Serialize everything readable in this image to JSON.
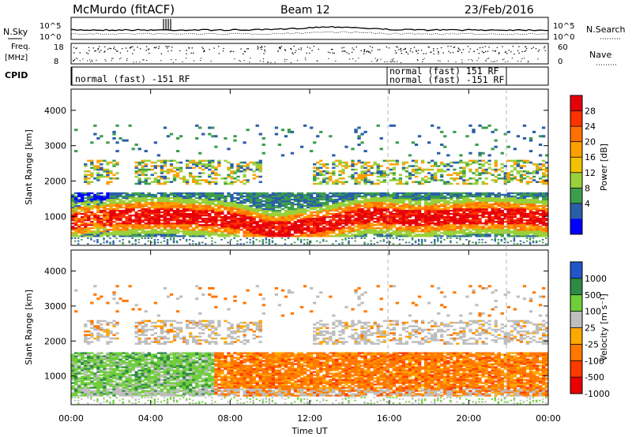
{
  "header": {
    "station": "McMurdo (fitACF)",
    "beam": "Beam 12",
    "date": "23/Feb/2016"
  },
  "top_panels": {
    "nsky_label": "N.Sky",
    "nsearch_label": "N.Search",
    "freq_label_1": "Freq.",
    "freq_label_2": "[MHz]",
    "nave_label": "Nave",
    "cpid_label": "CPID",
    "noise_ticks": [
      "10^5",
      "10^0"
    ],
    "freq_ticks": [
      "18",
      "8"
    ],
    "nave_ticks": [
      "60",
      "0"
    ],
    "cpid_segments": [
      {
        "label": "normal (fast) -151 RF"
      },
      {
        "label": "normal (fast) 151 RF"
      },
      {
        "label": "normal (fast) -151 RF"
      }
    ]
  },
  "chart_data": [
    {
      "type": "heatmap",
      "name": "power",
      "ylabel": "Slant Range [km]",
      "yticks": [
        1000,
        2000,
        3000,
        4000
      ],
      "ylim": [
        180,
        4600
      ],
      "colorbar": {
        "label": "Power [dB]",
        "ticks": [
          "28",
          "24",
          "20",
          "16",
          "12",
          "8",
          "4"
        ],
        "colors": [
          "#e6000a",
          "#ff3200",
          "#ff7000",
          "#ffa000",
          "#f2c200",
          "#9ad03a",
          "#3c9d4c",
          "#2a5fa8",
          "#0000ff"
        ]
      },
      "bands": [
        {
          "range": [
            420,
            1600
          ],
          "value": "high"
        },
        {
          "range": [
            1900,
            2500
          ],
          "value": "medium"
        },
        {
          "range": [
            2700,
            3600
          ],
          "value": "low"
        }
      ]
    },
    {
      "type": "heatmap",
      "name": "velocity",
      "ylabel": "Slant Range [km]",
      "xlabel": "Time UT",
      "xticks": [
        "00:00",
        "04:00",
        "08:00",
        "12:00",
        "16:00",
        "20:00",
        "00:00"
      ],
      "yticks": [
        1000,
        2000,
        3000,
        4000
      ],
      "ylim": [
        180,
        4600
      ],
      "colorbar": {
        "label": "Velocity [m s⁻¹]",
        "ticks": [
          "1000",
          "500",
          "100",
          "25",
          "-25",
          "-100",
          "-500",
          "-1000"
        ],
        "colors": [
          "#2255c8",
          "#2f8a46",
          "#6fce3a",
          "#bebebe",
          "#ffa800",
          "#ff7800",
          "#ff3a00",
          "#ea0000"
        ]
      },
      "bands": [
        {
          "range": [
            500,
            1650
          ],
          "value": "mixed"
        },
        {
          "range": [
            1900,
            2700
          ],
          "value": "near-zero"
        }
      ]
    }
  ]
}
